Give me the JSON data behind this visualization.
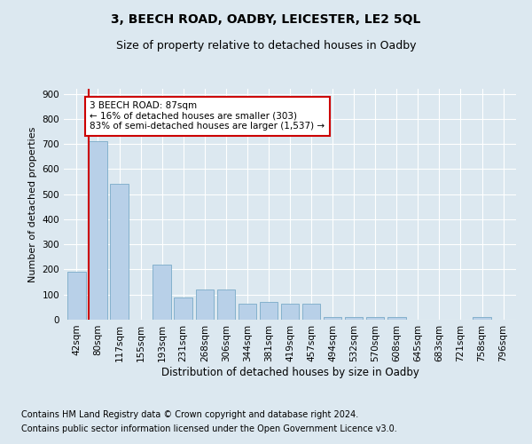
{
  "title": "3, BEECH ROAD, OADBY, LEICESTER, LE2 5QL",
  "subtitle": "Size of property relative to detached houses in Oadby",
  "xlabel": "Distribution of detached houses by size in Oadby",
  "ylabel": "Number of detached properties",
  "categories": [
    "42sqm",
    "80sqm",
    "117sqm",
    "155sqm",
    "193sqm",
    "231sqm",
    "268sqm",
    "306sqm",
    "344sqm",
    "381sqm",
    "419sqm",
    "457sqm",
    "494sqm",
    "532sqm",
    "570sqm",
    "608sqm",
    "645sqm",
    "683sqm",
    "721sqm",
    "758sqm",
    "796sqm"
  ],
  "values": [
    190,
    710,
    540,
    0,
    220,
    90,
    120,
    120,
    65,
    70,
    65,
    65,
    10,
    10,
    10,
    10,
    0,
    0,
    0,
    10,
    0
  ],
  "bar_color": "#b8d0e8",
  "bar_edge_color": "#7aaac8",
  "vline_color": "#cc0000",
  "annotation_text": "3 BEECH ROAD: 87sqm\n← 16% of detached houses are smaller (303)\n83% of semi-detached houses are larger (1,537) →",
  "annotation_box_color": "white",
  "annotation_box_edge_color": "#cc0000",
  "ylim": [
    0,
    920
  ],
  "yticks": [
    0,
    100,
    200,
    300,
    400,
    500,
    600,
    700,
    800,
    900
  ],
  "footer_line1": "Contains HM Land Registry data © Crown copyright and database right 2024.",
  "footer_line2": "Contains public sector information licensed under the Open Government Licence v3.0.",
  "background_color": "#dce8f0",
  "plot_bg_color": "#dce8f0",
  "title_fontsize": 10,
  "subtitle_fontsize": 9,
  "axis_label_fontsize": 8.5,
  "tick_fontsize": 7.5,
  "footer_fontsize": 7,
  "ylabel_fontsize": 8
}
